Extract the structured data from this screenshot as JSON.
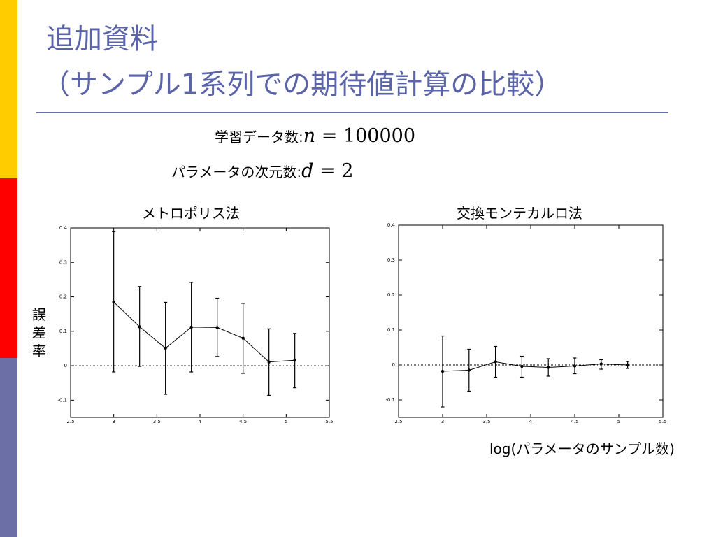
{
  "sidebar": {
    "colors": [
      "#ffcc00",
      "#ff0000",
      "#6b6fa6"
    ]
  },
  "slide": {
    "title_line1": "追加資料",
    "title_line2": "（サンプル1系列での期待値計算の比較）",
    "params": [
      {
        "label": "学習データ数:",
        "var": "n",
        "eq": " = ",
        "value": "100000"
      },
      {
        "label": "パラメータの次元数:",
        "var": "d",
        "eq": " = ",
        "value": "2"
      }
    ],
    "y_axis_label": [
      "誤",
      "差",
      "率"
    ],
    "x_axis_label": "log(パラメータのサンプル数)"
  },
  "chart_data": [
    {
      "type": "line",
      "title": "メトロポリス法",
      "xlim": [
        2.5,
        5.5
      ],
      "ylim": [
        -0.15,
        0.4
      ],
      "xticks": [
        "2.5",
        "3",
        "3.5",
        "4",
        "4.5",
        "5",
        "5.5"
      ],
      "yticks": [
        "-0.1",
        "0",
        "0.1",
        "0.2",
        "0.3",
        "0.4"
      ],
      "grid": false,
      "zero_line": true,
      "x": [
        3.0,
        3.3,
        3.6,
        3.9,
        4.2,
        4.5,
        4.8,
        5.1
      ],
      "y": [
        0.185,
        0.113,
        0.051,
        0.112,
        0.111,
        0.08,
        0.011,
        0.016
      ],
      "y_lower": [
        -0.018,
        -0.002,
        -0.083,
        -0.018,
        0.027,
        -0.022,
        -0.086,
        -0.064
      ],
      "y_upper": [
        0.389,
        0.23,
        0.184,
        0.242,
        0.196,
        0.181,
        0.107,
        0.094
      ]
    },
    {
      "type": "line",
      "title": "交換モンテカルロ法",
      "xlim": [
        2.5,
        5.5
      ],
      "ylim": [
        -0.15,
        0.4
      ],
      "xticks": [
        "2.5",
        "3",
        "3.5",
        "4",
        "4.5",
        "5",
        "5.5"
      ],
      "yticks": [
        "-0.1",
        "0",
        "0.1",
        "0.2",
        "0.3",
        "0.4"
      ],
      "grid": false,
      "zero_line": true,
      "x": [
        3.0,
        3.3,
        3.6,
        3.9,
        4.2,
        4.5,
        4.8,
        5.1
      ],
      "y": [
        -0.018,
        -0.015,
        0.009,
        -0.004,
        -0.007,
        -0.003,
        0.003,
        0.0
      ],
      "y_lower": [
        -0.12,
        -0.075,
        -0.035,
        -0.035,
        -0.032,
        -0.025,
        -0.012,
        -0.01
      ],
      "y_upper": [
        0.083,
        0.045,
        0.053,
        0.025,
        0.018,
        0.02,
        0.015,
        0.01
      ]
    }
  ]
}
